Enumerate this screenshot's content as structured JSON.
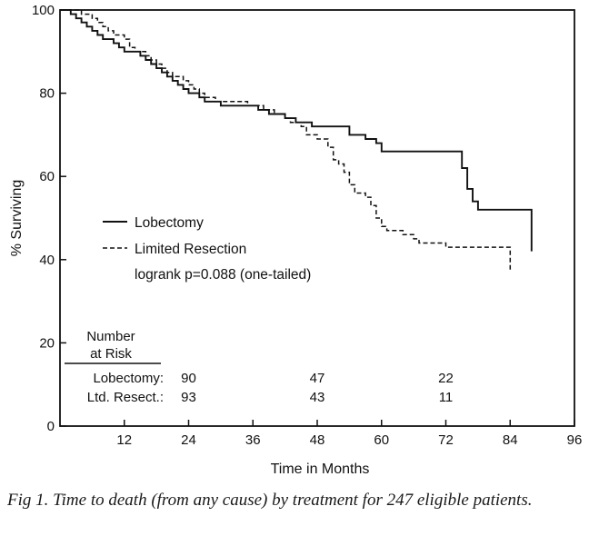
{
  "chart_data": {
    "type": "line",
    "subtype": "kaplan-meier survival",
    "xlabel": "Time in Months",
    "ylabel": "% Surviving",
    "xlim": [
      0,
      96
    ],
    "ylim": [
      0,
      100
    ],
    "xticks": [
      12,
      24,
      36,
      48,
      60,
      72,
      84,
      96
    ],
    "yticks": [
      0,
      20,
      40,
      60,
      80,
      100
    ],
    "grid": false,
    "legend_position": "center-left",
    "series": [
      {
        "name": "Lobectomy",
        "style": "solid",
        "points": [
          [
            0,
            100
          ],
          [
            2,
            99
          ],
          [
            3,
            98
          ],
          [
            4,
            97
          ],
          [
            5,
            96
          ],
          [
            6,
            95
          ],
          [
            7,
            94
          ],
          [
            8,
            93
          ],
          [
            10,
            92
          ],
          [
            11,
            91
          ],
          [
            12,
            90
          ],
          [
            15,
            89
          ],
          [
            16,
            88
          ],
          [
            17,
            87
          ],
          [
            18,
            86
          ],
          [
            19,
            85
          ],
          [
            20,
            84
          ],
          [
            21,
            83
          ],
          [
            22,
            82
          ],
          [
            23,
            81
          ],
          [
            24,
            80
          ],
          [
            26,
            79
          ],
          [
            27,
            78
          ],
          [
            30,
            77
          ],
          [
            34,
            77
          ],
          [
            37,
            76
          ],
          [
            39,
            75
          ],
          [
            42,
            74
          ],
          [
            44,
            73
          ],
          [
            47,
            72
          ],
          [
            53,
            72
          ],
          [
            54,
            70
          ],
          [
            57,
            69
          ],
          [
            59,
            68
          ],
          [
            60,
            66
          ],
          [
            74,
            66
          ],
          [
            75,
            62
          ],
          [
            76,
            57
          ],
          [
            77,
            54
          ],
          [
            78,
            52
          ],
          [
            88,
            52
          ],
          [
            88,
            42
          ]
        ]
      },
      {
        "name": "Limited Resection",
        "style": "dashed",
        "points": [
          [
            0,
            100
          ],
          [
            4,
            99
          ],
          [
            6,
            98
          ],
          [
            7,
            97
          ],
          [
            8,
            96
          ],
          [
            9,
            95
          ],
          [
            10,
            94
          ],
          [
            12,
            93
          ],
          [
            13,
            91
          ],
          [
            14,
            90
          ],
          [
            16,
            89
          ],
          [
            17,
            88
          ],
          [
            18,
            87
          ],
          [
            19,
            86
          ],
          [
            20,
            85
          ],
          [
            21,
            84
          ],
          [
            23,
            83
          ],
          [
            24,
            82
          ],
          [
            25,
            81
          ],
          [
            26,
            80
          ],
          [
            27,
            79
          ],
          [
            29,
            78
          ],
          [
            33,
            78
          ],
          [
            35,
            77
          ],
          [
            38,
            76
          ],
          [
            40,
            75
          ],
          [
            42,
            74
          ],
          [
            43,
            73
          ],
          [
            45,
            72
          ],
          [
            46,
            70
          ],
          [
            48,
            69
          ],
          [
            50,
            67
          ],
          [
            51,
            64
          ],
          [
            52,
            63
          ],
          [
            53,
            61
          ],
          [
            54,
            58
          ],
          [
            55,
            56
          ],
          [
            57,
            55
          ],
          [
            58,
            53
          ],
          [
            59,
            50
          ],
          [
            60,
            48
          ],
          [
            61,
            47
          ],
          [
            64,
            46
          ],
          [
            66,
            45
          ],
          [
            67,
            44
          ],
          [
            70,
            44
          ],
          [
            72,
            43
          ],
          [
            84,
            43
          ],
          [
            84,
            37
          ]
        ]
      }
    ],
    "legend_entries": [
      "Lobectomy",
      "Limited Resection"
    ],
    "annotation": "logrank p=0.088 (one-tailed)",
    "number_at_risk": {
      "header_line1": "Number",
      "header_line2": "at Risk",
      "times": [
        24,
        48,
        72
      ],
      "rows": [
        {
          "label": "Lobectomy:",
          "values": [
            "90",
            "47",
            "22"
          ]
        },
        {
          "label": "Ltd. Resect.:",
          "values": [
            "93",
            "43",
            "11"
          ]
        }
      ]
    }
  },
  "caption": "Fig 1. Time to death (from any cause) by treatment for 247 eligible patients."
}
